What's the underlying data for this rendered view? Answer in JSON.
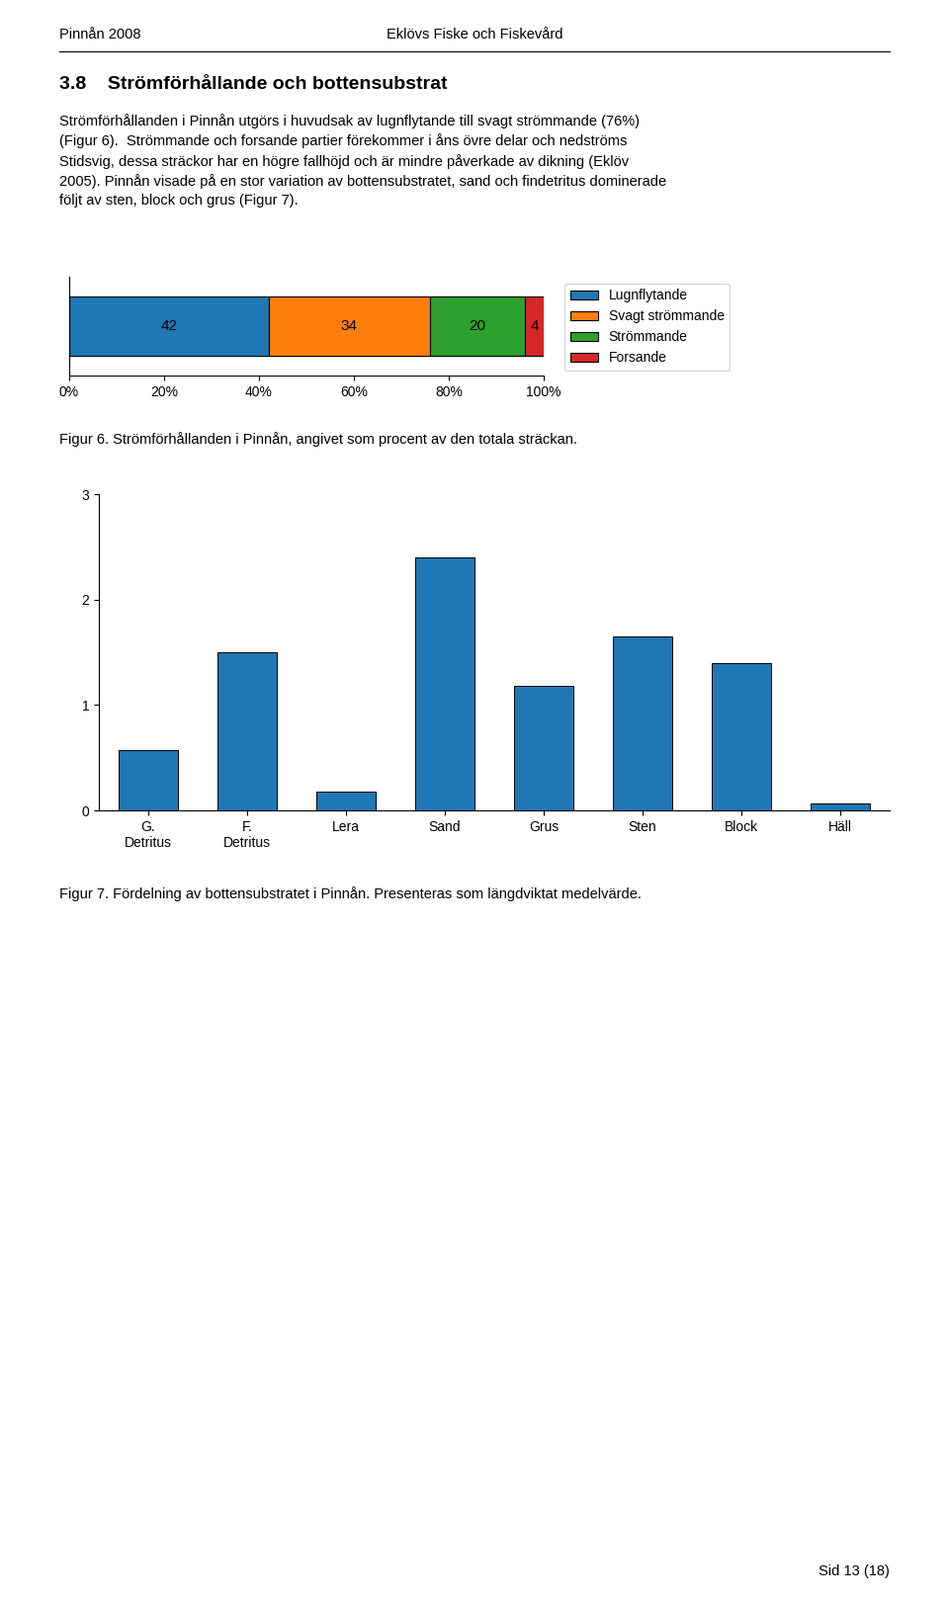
{
  "chart_data": [
    {
      "type": "bar",
      "orientation": "horizontal",
      "stacked": true,
      "title": "Figur 6. Strömförhållanden i Pinnån, angivet som procent av den totala sträckan.",
      "categories": [
        null
      ],
      "series": [
        {
          "name": "Lugnflytande",
          "values": [
            42
          ]
        },
        {
          "name": "Svagt strömmande",
          "values": [
            34
          ]
        },
        {
          "name": "Strömmande",
          "values": [
            20
          ]
        },
        {
          "name": "Forsande",
          "values": [
            4
          ]
        }
      ],
      "xlim": [
        0,
        100
      ],
      "xticks": [
        {
          "value": 0,
          "label": "0%"
        },
        {
          "value": 20,
          "label": "20%"
        },
        {
          "value": 40,
          "label": "40%"
        },
        {
          "value": 60,
          "label": "60%"
        },
        {
          "value": 80,
          "label": "80%"
        },
        {
          "value": 100,
          "label": "100%"
        }
      ],
      "tick_labels": "x",
      "data_labels": true,
      "legend": "upper left"
    },
    {
      "type": "bar",
      "title": "Figur 7. Fördelning av bottensubstratet i Pinnån. Presenteras som längdviktat medelvärde.",
      "categories": [
        "G.\nDetritus",
        "F.\nDetritus",
        "Lera",
        "Sand",
        "Grus",
        "Sten",
        "Block",
        "Häll"
      ],
      "values": [
        0.57,
        1.5,
        0.18,
        2.4,
        1.18,
        1.65,
        1.4,
        0.07
      ],
      "ylim": [
        0,
        3
      ],
      "yticks": [
        0,
        1,
        2,
        3
      ]
    }
  ],
  "annotations": [
    "Pinnån 2008",
    "Eklövs Fiske och Fiskevård",
    "3.8    Strömförhållande och bottensubstrat",
    "Strömförhållanden i Pinnån utgörs i huvudsak av lugnflytande till svagt strömmande (76%)\n(Figur 6).  Strömmande och forsande partier förekommer i åns övre delar och nedströms\nStidsvig, dessa sträckor har en högre fallhöjd och är mindre påverkade av dikning (Eklöv\n2005). Pinnån visade på en stor variation av bottensubstratet, sand och findetritus dominerade\nföljt av sten, block och grus (Figur 7).",
    "Sid 13 (18)"
  ]
}
